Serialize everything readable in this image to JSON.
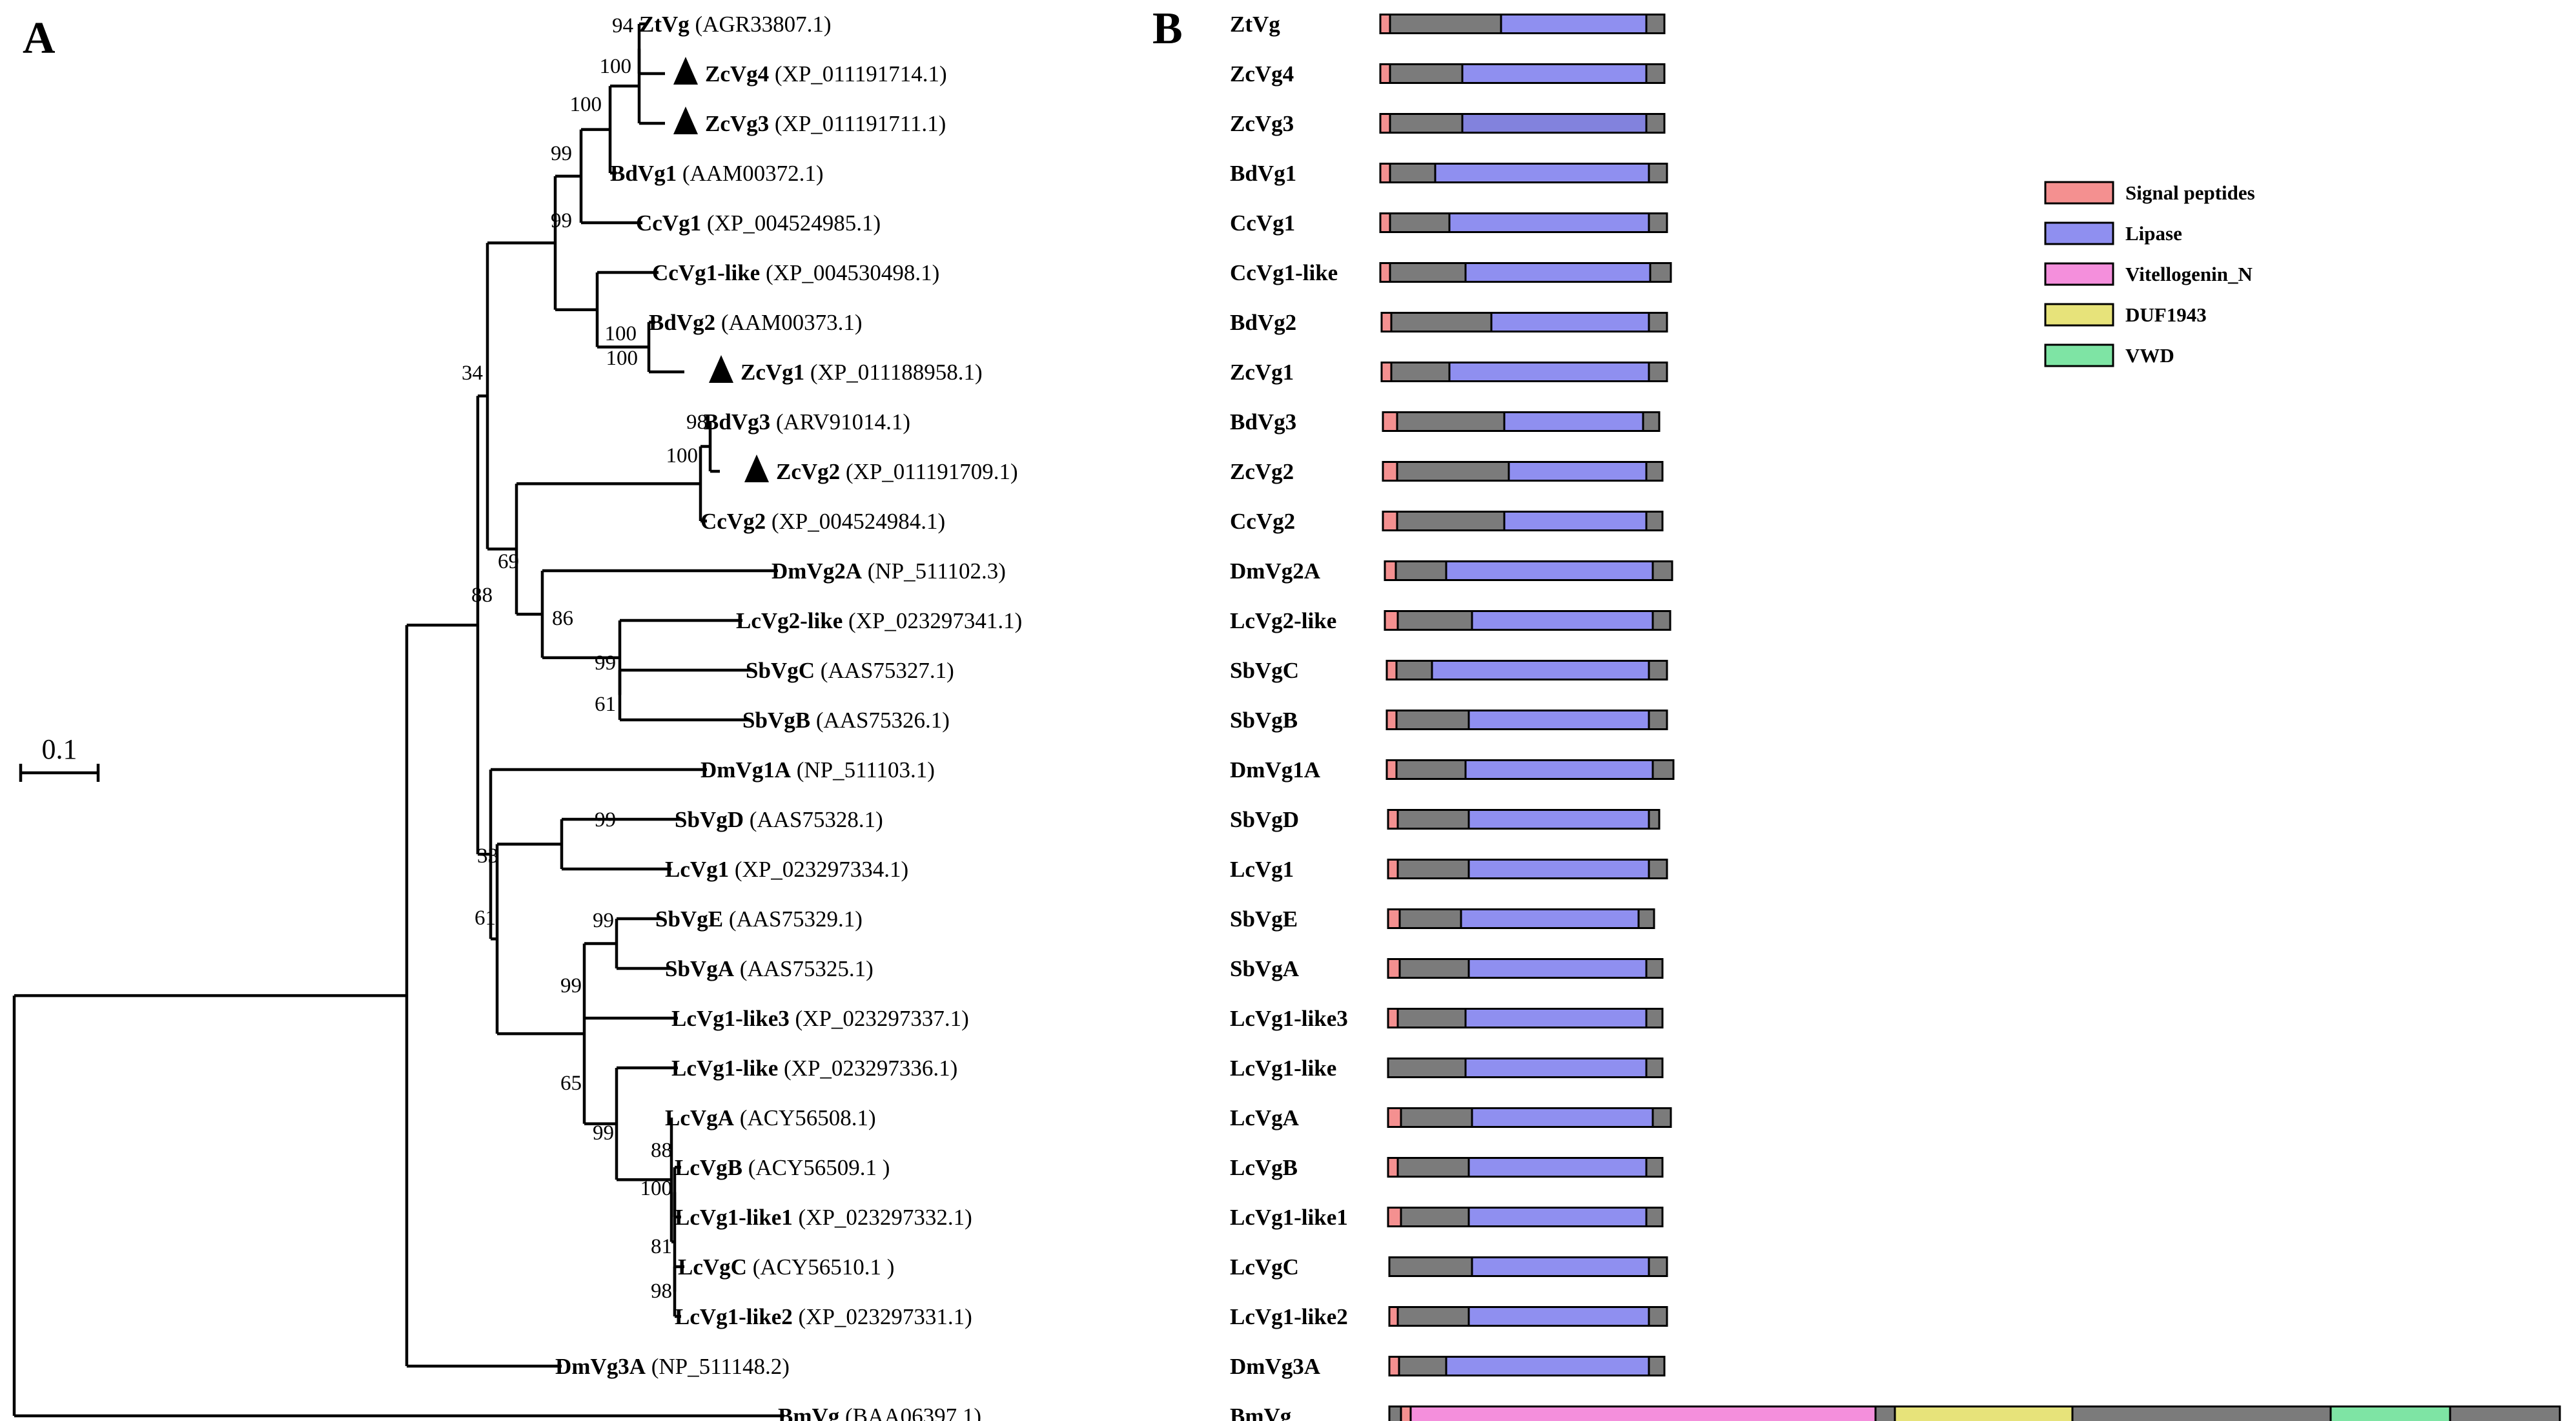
{
  "panels": {
    "a": "A",
    "b": "B"
  },
  "scale_bar": {
    "label": "0.1",
    "value": 0.1
  },
  "colors": {
    "signal": "#f49090",
    "lipase": "#8f8ff0",
    "lipase_dark": "#8282dd",
    "vitello": "#f48fdc",
    "duf": "#e7e37a",
    "vwd": "#7ee4a4",
    "gap": "#7b7b7b",
    "outline": "#000000"
  },
  "tree": {
    "marked_icon": "filled-triangle-marker",
    "tips": [
      {
        "name": "ZtVg",
        "acc": "(AGR33807.1)",
        "marked": false
      },
      {
        "name": "ZcVg4",
        "acc": "(XP_011191714.1)",
        "marked": true
      },
      {
        "name": "ZcVg3",
        "acc": "(XP_011191711.1)",
        "marked": true
      },
      {
        "name": "BdVg1",
        "acc": "(AAM00372.1)",
        "marked": false
      },
      {
        "name": "CcVg1",
        "acc": "(XP_004524985.1)",
        "marked": false
      },
      {
        "name": "CcVg1-like",
        "acc": "(XP_004530498.1)",
        "marked": false
      },
      {
        "name": "BdVg2",
        "acc": "(AAM00373.1)",
        "marked": false
      },
      {
        "name": "ZcVg1",
        "acc": "(XP_011188958.1)",
        "marked": true
      },
      {
        "name": "BdVg3",
        "acc": "(ARV91014.1)",
        "marked": false
      },
      {
        "name": "ZcVg2",
        "acc": "(XP_011191709.1)",
        "marked": true
      },
      {
        "name": "CcVg2",
        "acc": "(XP_004524984.1)",
        "marked": false
      },
      {
        "name": "DmVg2A",
        "acc": "(NP_511102.3)",
        "marked": false
      },
      {
        "name": "LcVg2-like",
        "acc": "(XP_023297341.1)",
        "marked": false
      },
      {
        "name": "SbVgC",
        "acc": "(AAS75327.1)",
        "marked": false
      },
      {
        "name": "SbVgB",
        "acc": "(AAS75326.1)",
        "marked": false
      },
      {
        "name": "DmVg1A",
        "acc": "(NP_511103.1)",
        "marked": false
      },
      {
        "name": "SbVgD",
        "acc": "(AAS75328.1)",
        "marked": false
      },
      {
        "name": "LcVg1",
        "acc": "(XP_023297334.1)",
        "marked": false
      },
      {
        "name": "SbVgE",
        "acc": "(AAS75329.1)",
        "marked": false
      },
      {
        "name": "SbVgA",
        "acc": "(AAS75325.1)",
        "marked": false
      },
      {
        "name": "LcVg1-like3",
        "acc": "(XP_023297337.1)",
        "marked": false
      },
      {
        "name": "LcVg1-like",
        "acc": "(XP_023297336.1)",
        "marked": false
      },
      {
        "name": "LcVgA",
        "acc": "(ACY56508.1)",
        "marked": false
      },
      {
        "name": "LcVgB",
        "acc": "(ACY56509.1  )",
        "marked": false
      },
      {
        "name": "LcVg1-like1",
        "acc": "(XP_023297332.1)",
        "marked": false
      },
      {
        "name": "LcVgC",
        "acc": "(ACY56510.1  )",
        "marked": false
      },
      {
        "name": "LcVg1-like2",
        "acc": "(XP_023297331.1)",
        "marked": false
      },
      {
        "name": "DmVg3A",
        "acc": "(NP_511148.2)",
        "marked": false
      },
      {
        "name": "BmVg",
        "acc": "(BAA06397.1)",
        "marked": false
      }
    ],
    "bootstrap": [
      "94",
      "100",
      "100",
      "99",
      "99",
      "100",
      "100",
      "34",
      "98",
      "100",
      "69",
      "86",
      "99",
      "61",
      "88",
      "99",
      "33",
      "61",
      "99",
      "99",
      "65",
      "99",
      "88",
      "100",
      "81",
      "98"
    ]
  },
  "domains": {
    "legend": [
      {
        "key": "signal",
        "label": "Signal peptides"
      },
      {
        "key": "lipase",
        "label": "Lipase"
      },
      {
        "key": "vitello",
        "label": "Vitellogenin_N"
      },
      {
        "key": "duf",
        "label": "DUF1943"
      },
      {
        "key": "vwd",
        "label": "VWD"
      }
    ],
    "labels": [
      "ZtVg",
      "ZcVg4",
      "ZcVg3",
      "BdVg1",
      "CcVg1",
      "CcVg1-like",
      "BdVg2",
      "ZcVg1",
      "BdVg3",
      "ZcVg2",
      "CcVg2",
      "DmVg2A",
      "LcVg2-like",
      "SbVgC",
      "SbVgB",
      "DmVg1A",
      "SbVgD",
      "LcVg1",
      "SbVgE",
      "SbVgA",
      "LcVg1-like3",
      "LcVg1-like",
      "LcVgA",
      "LcVgB",
      "LcVg1-like1",
      "LcVgC",
      "LcVg1-like2",
      "DmVg3A",
      "BmVg"
    ]
  }
}
